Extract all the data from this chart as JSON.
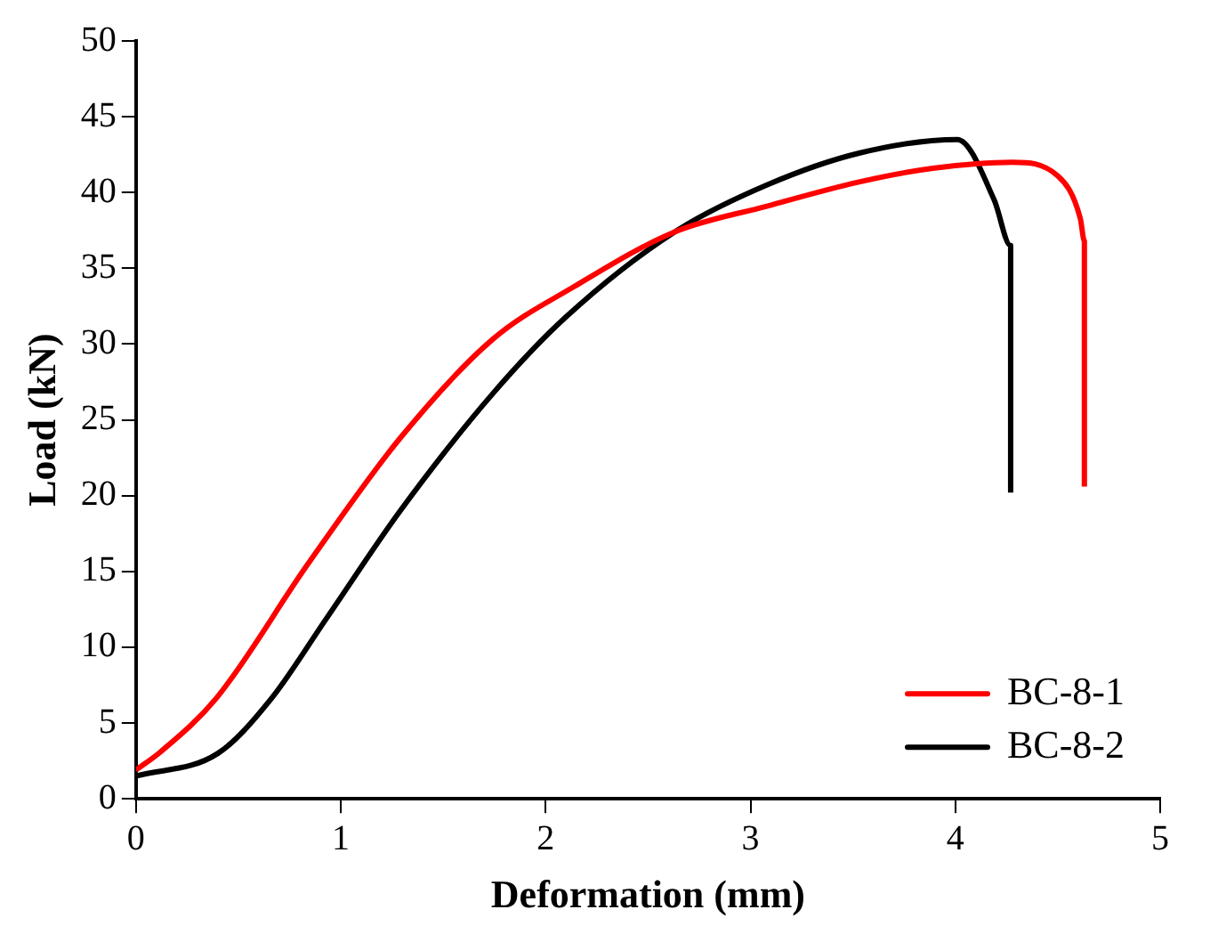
{
  "chart_data": {
    "type": "line",
    "xlabel": "Deformation (mm)",
    "ylabel": "Load (kN)",
    "xlim": [
      0,
      5
    ],
    "xticks": [
      0,
      1,
      2,
      3,
      4,
      5
    ],
    "ylim": [
      0,
      50
    ],
    "yticks": [
      0,
      5,
      10,
      15,
      20,
      25,
      30,
      35,
      40,
      45,
      50
    ],
    "grid": false,
    "legend": "bottom right",
    "marker": "none",
    "line_style": "solid",
    "series": [
      {
        "name": "BC-8-1",
        "color": "#ff0000",
        "x": [
          0,
          0.12,
          0.39,
          0.84,
          1.29,
          1.74,
          2.14,
          2.63,
          3.08,
          3.53,
          3.89,
          4.28,
          4.5,
          4.61,
          4.63,
          4.63
        ],
        "values": [
          1.9,
          3.1,
          6.6,
          15.5,
          23.8,
          30.3,
          33.8,
          37.4,
          39.1,
          40.7,
          41.6,
          42.0,
          41.1,
          38.3,
          36.8,
          20.6
        ]
      },
      {
        "name": "BC-8-2",
        "color": "#000000",
        "x": [
          0,
          0.4,
          0.66,
          0.93,
          1.29,
          1.74,
          2.1,
          2.63,
          3.08,
          3.53,
          4.01,
          4.19,
          4.27,
          4.27
        ],
        "values": [
          1.5,
          3.0,
          6.6,
          11.9,
          19.0,
          26.7,
          31.8,
          37.4,
          40.5,
          42.6,
          43.5,
          39.5,
          36.5,
          20.2
        ]
      }
    ]
  }
}
